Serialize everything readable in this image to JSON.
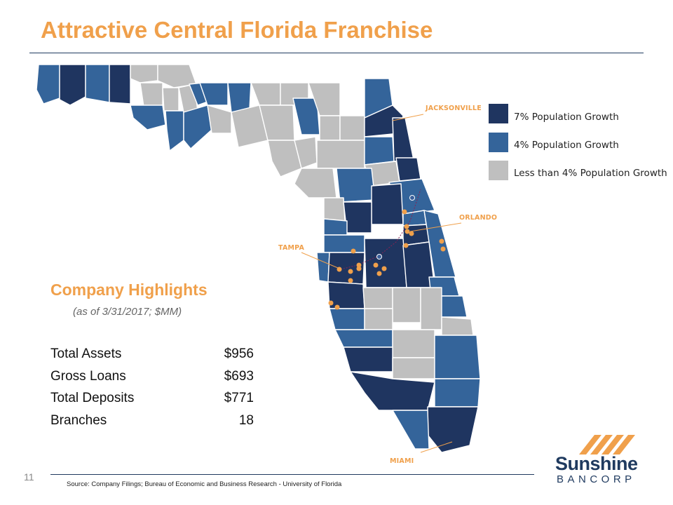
{
  "slide": {
    "title": "Attractive Central Florida Franchise",
    "page_number": "11",
    "source": "Source: Company Filings; Bureau of Economic and Business Research - University of Florida"
  },
  "legend": {
    "items": [
      {
        "label": "7% Population Growth",
        "color": "#1F3560"
      },
      {
        "label": "4% Population Growth",
        "color": "#34649A"
      },
      {
        "label": "Less than 4% Population Growth",
        "color": "#BFBFBF"
      }
    ]
  },
  "map": {
    "cities": {
      "jacksonville": "JACKSONVILLE",
      "orlando": "ORLANDO",
      "tampa": "TAMPA",
      "miami": "MIAMI"
    },
    "colors": {
      "high": "#1F3560",
      "mid": "#34649A",
      "low": "#BFBFBF",
      "accent": "#F0A04B",
      "highway": "#8B2252"
    }
  },
  "highlights": {
    "title": "Company Highlights",
    "subtitle": "(as of 3/31/2017; $MM)",
    "rows": [
      {
        "label": "Total Assets",
        "value": "$956"
      },
      {
        "label": "Gross Loans",
        "value": "$693"
      },
      {
        "label": "Total Deposits",
        "value": "$771"
      },
      {
        "label": "Branches",
        "value": "18"
      }
    ]
  },
  "logo": {
    "name": "Sunshine",
    "sub": "BANCORP"
  }
}
